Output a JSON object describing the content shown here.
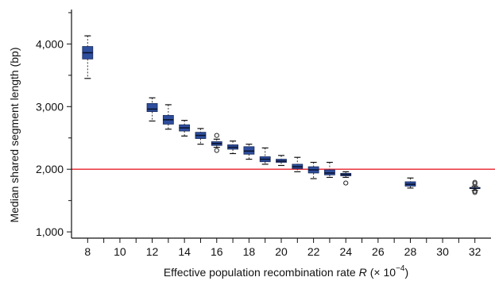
{
  "chart_data": {
    "type": "box",
    "title": "",
    "xlabel": "Effective population recombination rate",
    "xlabel_var": "R",
    "xlabel_unit": "(× 10",
    "xlabel_exp": "−4",
    "xlabel_close": ")",
    "ylabel": "Median shared segment length (bp)",
    "ylim": [
      900,
      4550
    ],
    "xlim": [
      7,
      33
    ],
    "x_ticks": [
      8,
      10,
      12,
      14,
      16,
      18,
      20,
      22,
      24,
      26,
      28,
      30,
      32
    ],
    "y_ticks": [
      1000,
      2000,
      3000,
      4000
    ],
    "y_tick_labels": [
      "1,000",
      "2,000",
      "3,000",
      "4,000"
    ],
    "reference_line": {
      "y": 2000,
      "color": "#e8212c"
    },
    "box_color": "#2e4e9e",
    "grid": false,
    "boxes": [
      {
        "x": 8,
        "whisker_low": 3450,
        "q1": 3760,
        "median": 3860,
        "q3": 3960,
        "whisker_high": 4130,
        "outliers": []
      },
      {
        "x": 12,
        "whisker_low": 2770,
        "q1": 2920,
        "median": 2960,
        "q3": 3050,
        "whisker_high": 3140,
        "outliers": []
      },
      {
        "x": 13,
        "whisker_low": 2640,
        "q1": 2720,
        "median": 2790,
        "q3": 2860,
        "whisker_high": 3030,
        "outliers": []
      },
      {
        "x": 14,
        "whisker_low": 2530,
        "q1": 2610,
        "median": 2660,
        "q3": 2710,
        "whisker_high": 2780,
        "outliers": []
      },
      {
        "x": 15,
        "whisker_low": 2400,
        "q1": 2490,
        "median": 2540,
        "q3": 2590,
        "whisker_high": 2650,
        "outliers": []
      },
      {
        "x": 16,
        "whisker_low": 2350,
        "q1": 2380,
        "median": 2410,
        "q3": 2440,
        "whisker_high": 2480,
        "outliers": [
          2300,
          2540
        ]
      },
      {
        "x": 17,
        "whisker_low": 2250,
        "q1": 2320,
        "median": 2350,
        "q3": 2390,
        "whisker_high": 2450,
        "outliers": []
      },
      {
        "x": 18,
        "whisker_low": 2160,
        "q1": 2240,
        "median": 2290,
        "q3": 2360,
        "whisker_high": 2400,
        "outliers": []
      },
      {
        "x": 19,
        "whisker_low": 2080,
        "q1": 2120,
        "median": 2160,
        "q3": 2200,
        "whisker_high": 2340,
        "outliers": []
      },
      {
        "x": 20,
        "whisker_low": 2060,
        "q1": 2110,
        "median": 2130,
        "q3": 2160,
        "whisker_high": 2220,
        "outliers": []
      },
      {
        "x": 21,
        "whisker_low": 1960,
        "q1": 2010,
        "median": 2040,
        "q3": 2080,
        "whisker_high": 2190,
        "outliers": []
      },
      {
        "x": 22,
        "whisker_low": 1850,
        "q1": 1940,
        "median": 1990,
        "q3": 2040,
        "whisker_high": 2110,
        "outliers": []
      },
      {
        "x": 23,
        "whisker_low": 1870,
        "q1": 1910,
        "median": 1940,
        "q3": 1990,
        "whisker_high": 2110,
        "outliers": []
      },
      {
        "x": 24,
        "whisker_low": 1870,
        "q1": 1895,
        "median": 1915,
        "q3": 1935,
        "whisker_high": 1960,
        "outliers": [
          1780
        ]
      },
      {
        "x": 28,
        "whisker_low": 1700,
        "q1": 1730,
        "median": 1760,
        "q3": 1800,
        "whisker_high": 1860,
        "outliers": []
      },
      {
        "x": 32,
        "whisker_low": 1660,
        "q1": 1690,
        "median": 1700,
        "q3": 1710,
        "whisker_high": 1730,
        "outliers": [
          1630,
          1650,
          1770,
          1790
        ]
      }
    ]
  }
}
